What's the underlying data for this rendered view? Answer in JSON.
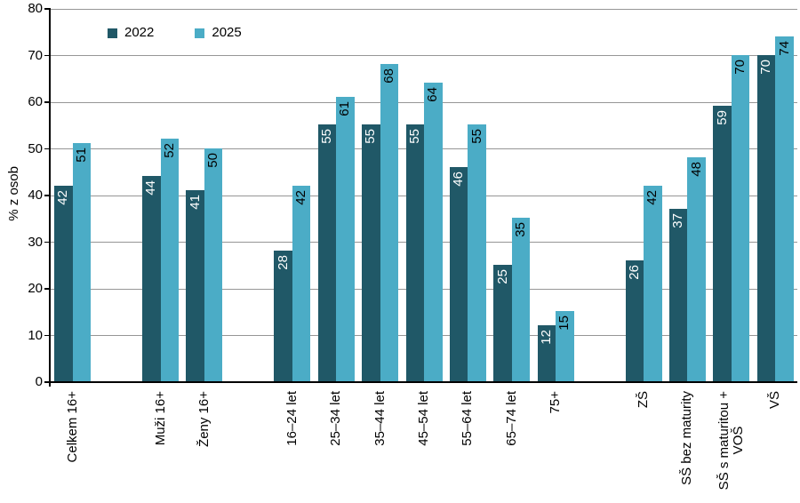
{
  "chart_data": {
    "type": "bar",
    "title": "",
    "xlabel": "",
    "ylabel": "% z osob",
    "ylim": [
      0,
      80
    ],
    "ytick_step": 10,
    "yticks": [
      0,
      10,
      20,
      30,
      40,
      50,
      60,
      70,
      80
    ],
    "grid": "horizontal",
    "legend_position": "top-inside",
    "categories": [
      "Celkem 16+",
      "Muži 16+",
      "Ženy 16+",
      "16–24 let",
      "25–34 let",
      "35–44 let",
      "45–54 let",
      "55–64 let",
      "65–74 let",
      "75+",
      "ZŠ",
      "SŠ bez maturity",
      "SŠ s maturitou +\nVOŠ",
      "VŠ"
    ],
    "section_breaks_after": [
      0,
      2,
      9
    ],
    "series": [
      {
        "name": "2022",
        "color": "#205867",
        "label_color": "#ffffff",
        "values": [
          42,
          44,
          41,
          28,
          55,
          55,
          55,
          46,
          25,
          12,
          26,
          37,
          59,
          70
        ]
      },
      {
        "name": "2025",
        "color": "#4BACC6",
        "label_color": "#000000",
        "values": [
          51,
          52,
          50,
          42,
          61,
          68,
          64,
          55,
          35,
          15,
          42,
          48,
          70,
          74
        ]
      }
    ],
    "colors": {
      "gridline": "#969696",
      "axis": "#000000",
      "text": "#000000",
      "background": "#ffffff"
    }
  }
}
